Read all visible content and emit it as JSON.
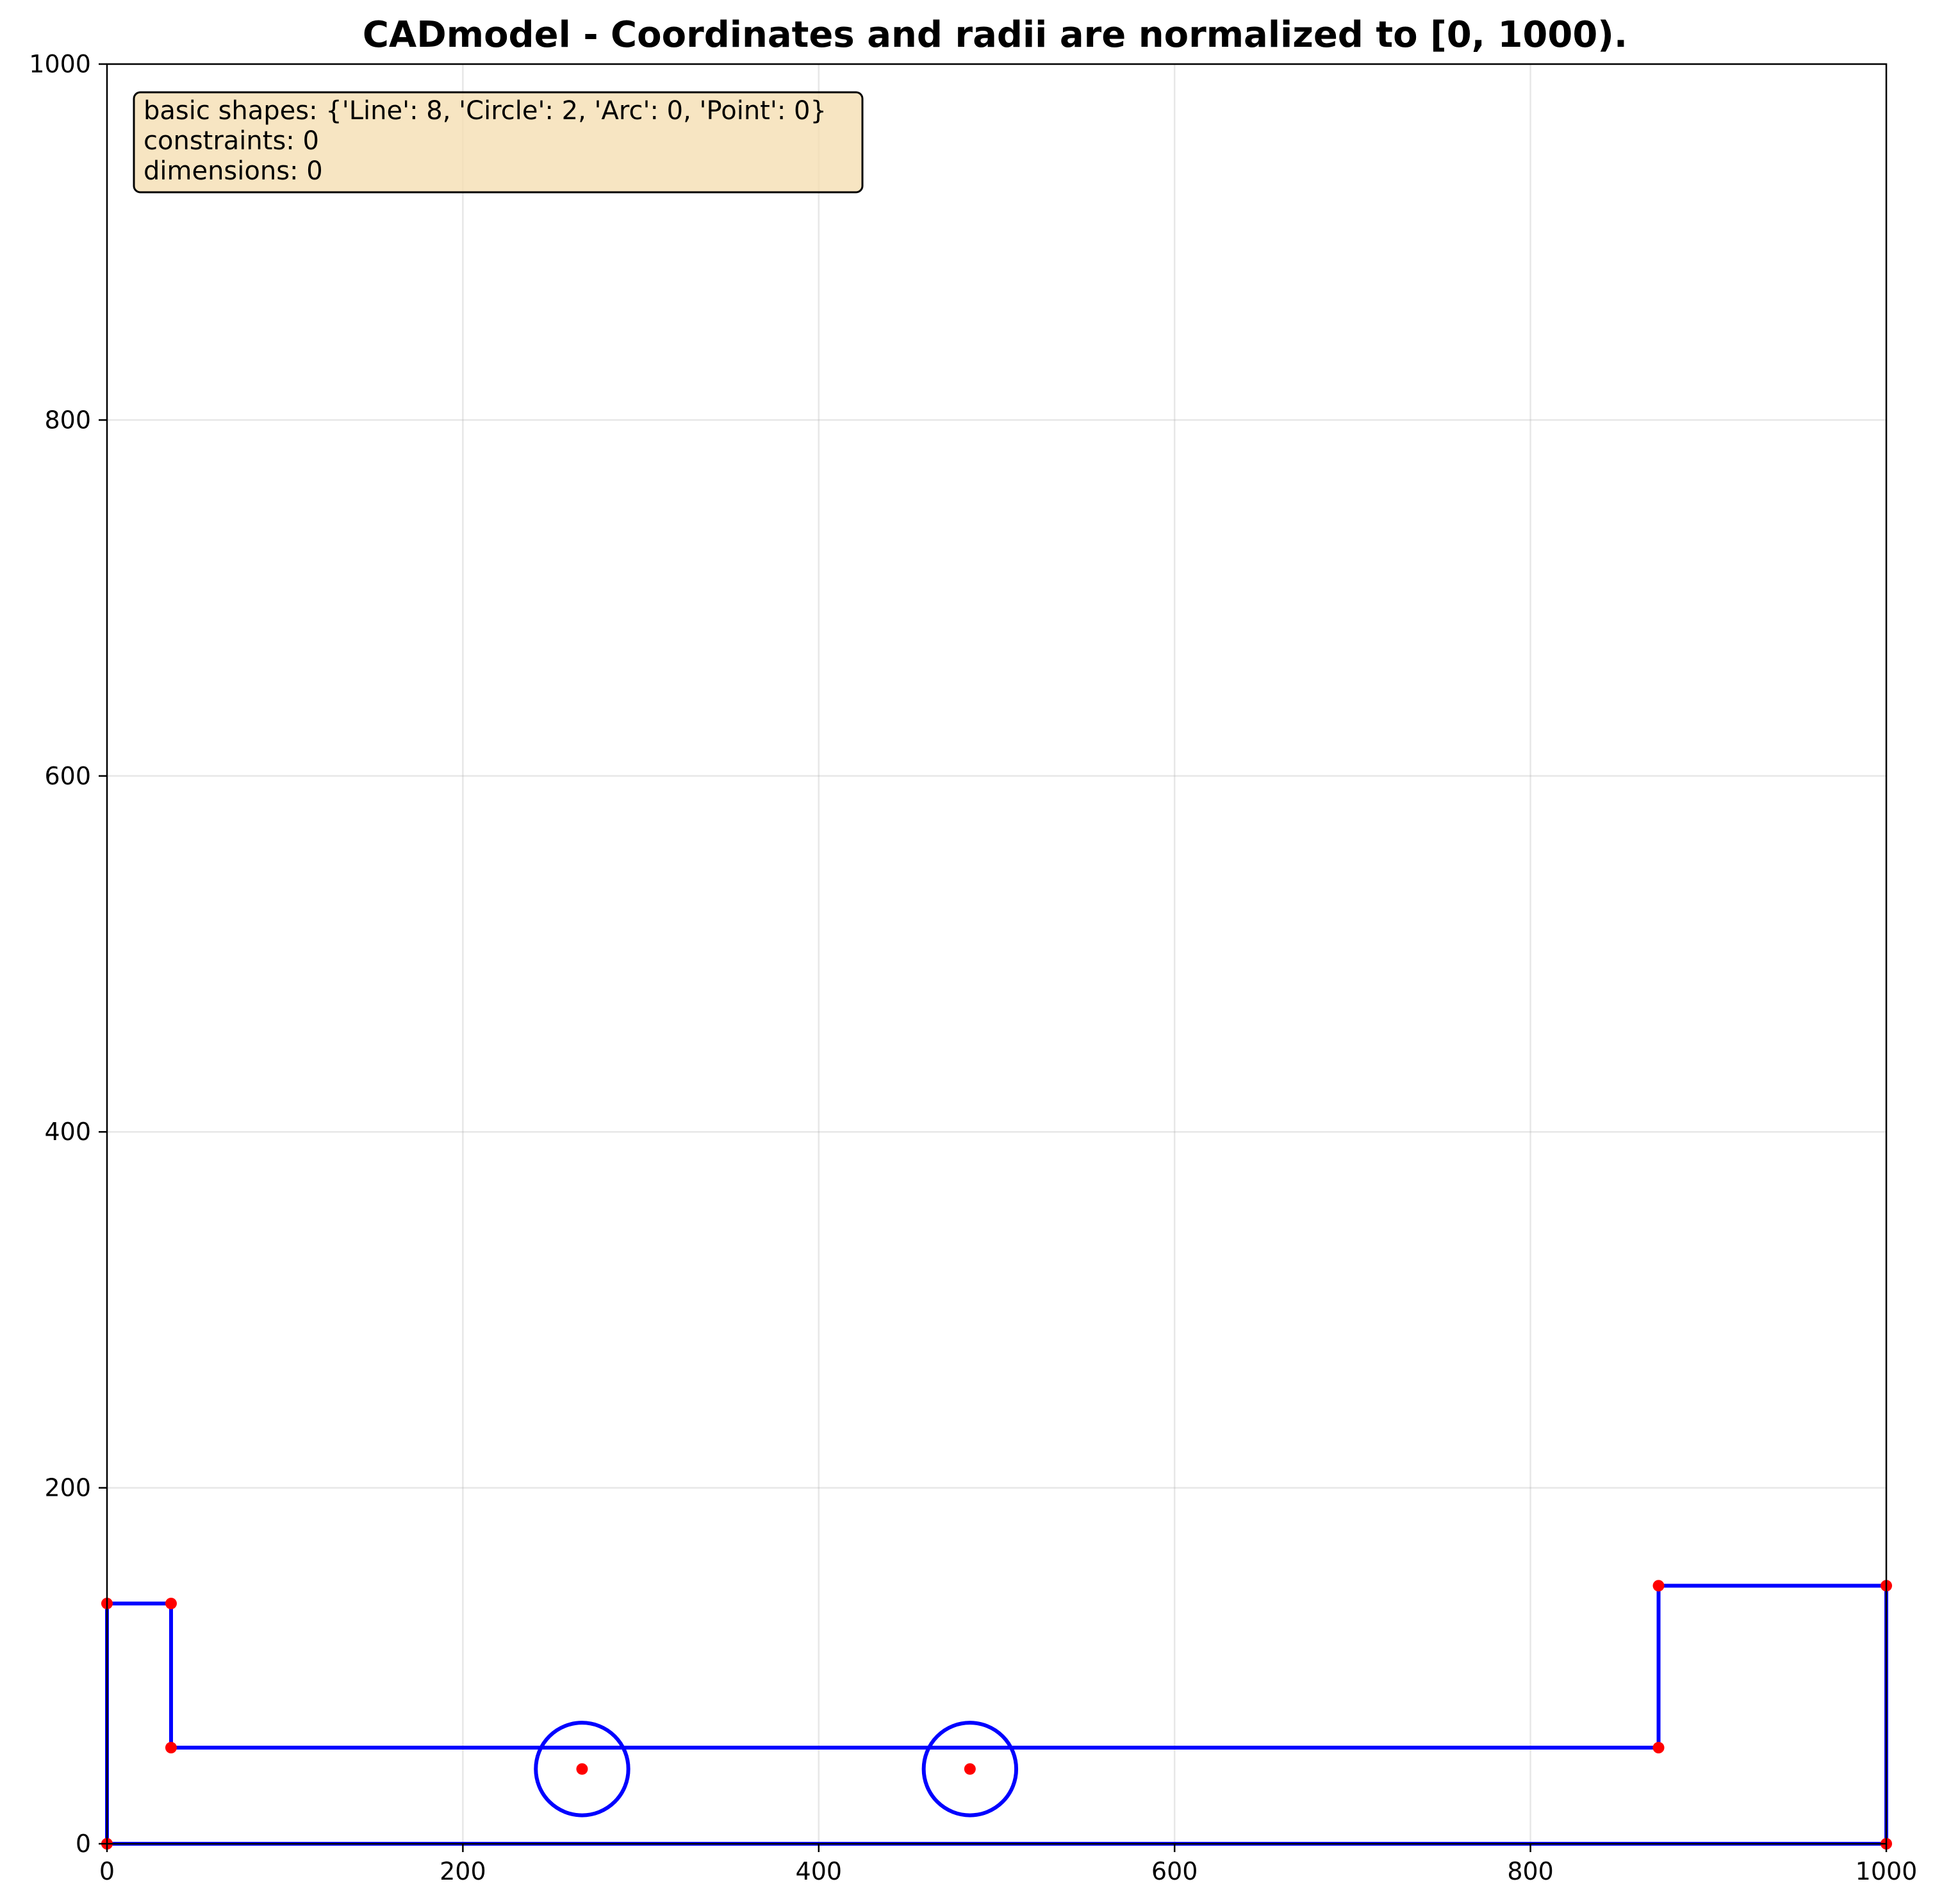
{
  "title": "CADmodel - Coordinates and radii are normalized to [0, 1000).",
  "info_box": {
    "lines": [
      "basic shapes: {'Line': 8, 'Circle': 2, 'Arc': 0, 'Point': 0}",
      "constraints: 0",
      "dimensions: 0"
    ],
    "background": "#f5deb3",
    "border": "#000000"
  },
  "chart_data": {
    "type": "scatter",
    "xlim": [
      0,
      1000
    ],
    "ylim": [
      0,
      1000
    ],
    "x_ticks": [
      0,
      200,
      400,
      600,
      800,
      1000
    ],
    "y_ticks": [
      0,
      200,
      400,
      600,
      800,
      1000
    ],
    "grid": true,
    "line_color": "#0000ff",
    "point_color": "#ff0000",
    "lines": [
      {
        "x1": 0,
        "y1": 0,
        "x2": 1000,
        "y2": 0
      },
      {
        "x1": 0,
        "y1": 0,
        "x2": 0,
        "y2": 135
      },
      {
        "x1": 0,
        "y1": 135,
        "x2": 36,
        "y2": 135
      },
      {
        "x1": 36,
        "y1": 135,
        "x2": 36,
        "y2": 54
      },
      {
        "x1": 36,
        "y1": 54,
        "x2": 872,
        "y2": 54
      },
      {
        "x1": 872,
        "y1": 54,
        "x2": 872,
        "y2": 145
      },
      {
        "x1": 872,
        "y1": 145,
        "x2": 1000,
        "y2": 145
      },
      {
        "x1": 1000,
        "y1": 145,
        "x2": 1000,
        "y2": 0
      }
    ],
    "circles": [
      {
        "cx": 267,
        "cy": 42,
        "r": 26
      },
      {
        "cx": 485,
        "cy": 42,
        "r": 26
      }
    ],
    "points": [
      [
        0,
        135
      ],
      [
        36,
        135
      ],
      [
        36,
        54
      ],
      [
        872,
        54
      ],
      [
        872,
        145
      ],
      [
        1000,
        145
      ],
      [
        1000,
        0
      ],
      [
        0,
        0
      ],
      [
        267,
        42
      ],
      [
        485,
        42
      ]
    ]
  }
}
